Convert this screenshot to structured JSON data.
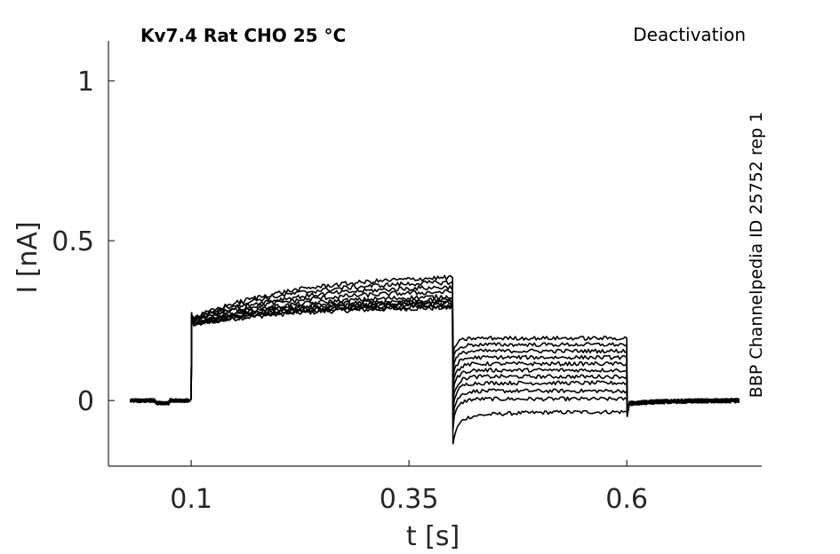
{
  "chart_data": {
    "type": "line",
    "title": "Kv7.4  Rat  CHO  25 °C",
    "protocol_label": "Deactivation",
    "side_label": "BBP Channelpedia ID 25752 rep 1",
    "xlabel": "t [s]",
    "ylabel": "I [nA]",
    "xlim": [
      0.005,
      0.755
    ],
    "ylim": [
      -0.205,
      1.125
    ],
    "xticks": [
      0.1,
      0.35,
      0.6
    ],
    "xtick_labels": [
      "0.1",
      "0.35",
      "0.6"
    ],
    "yticks": [
      0,
      0.5,
      1
    ],
    "ytick_labels": [
      "0",
      "0.5",
      "1"
    ],
    "grid": false,
    "legend": "none",
    "line_color": "#000000",
    "protocol": {
      "baseline_start": 0.03,
      "step_on": 0.1,
      "step_off": 0.4,
      "tail_off": 0.6,
      "end": 0.73
    },
    "series": [
      {
        "step_start": 0.235,
        "step_end": 0.29,
        "tail": -0.035
      },
      {
        "step_start": 0.24,
        "step_end": 0.295,
        "tail": 0.005
      },
      {
        "step_start": 0.235,
        "step_end": 0.3,
        "tail": 0.03
      },
      {
        "step_start": 0.24,
        "step_end": 0.305,
        "tail": 0.055
      },
      {
        "step_start": 0.24,
        "step_end": 0.31,
        "tail": 0.075
      },
      {
        "step_start": 0.245,
        "step_end": 0.315,
        "tail": 0.095
      },
      {
        "step_start": 0.245,
        "step_end": 0.325,
        "tail": 0.115
      },
      {
        "step_start": 0.25,
        "step_end": 0.34,
        "tail": 0.135
      },
      {
        "step_start": 0.25,
        "step_end": 0.355,
        "tail": 0.155
      },
      {
        "step_start": 0.255,
        "step_end": 0.37,
        "tail": 0.175
      },
      {
        "step_start": 0.255,
        "step_end": 0.385,
        "tail": 0.195
      }
    ]
  }
}
